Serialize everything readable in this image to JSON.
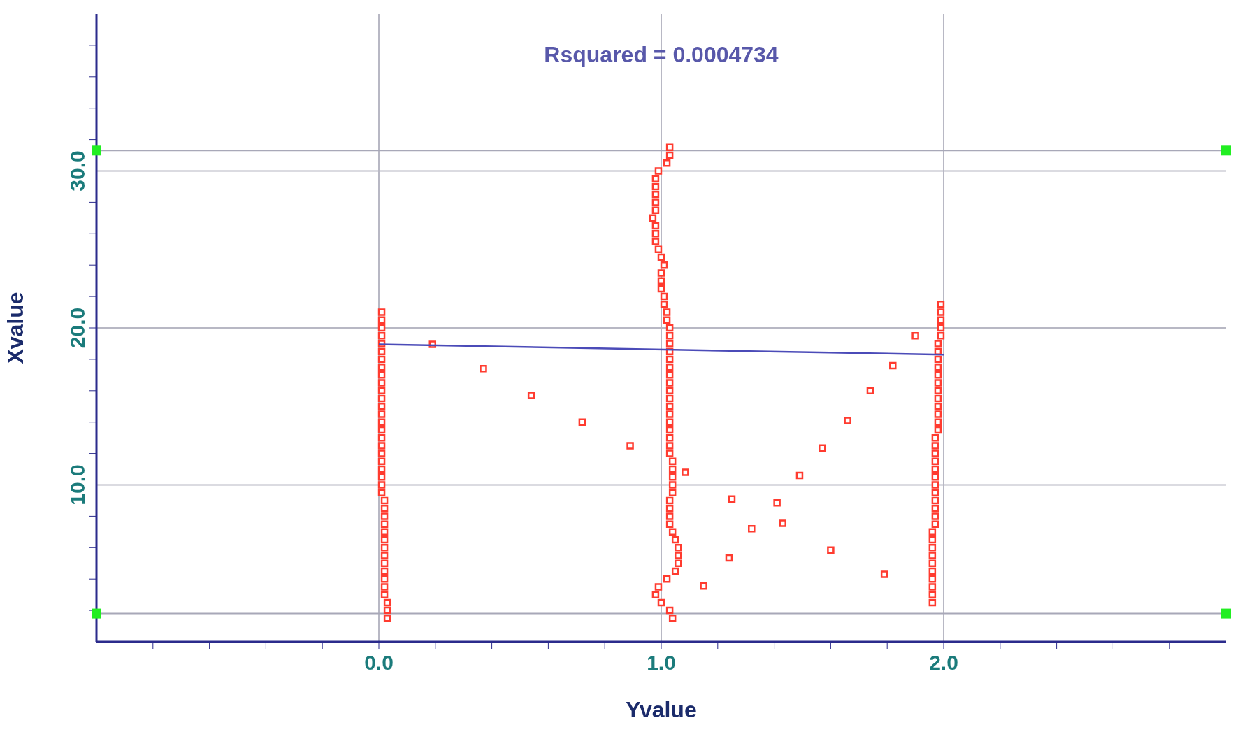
{
  "chart_data": {
    "type": "scatter",
    "xlabel": "Yvalue",
    "ylabel": "Xvalue",
    "annotations": [
      "Rsquared = 0.0004734"
    ],
    "xlim": [
      -1,
      3
    ],
    "xticks": [
      {
        "value": -0.8,
        "label": null
      },
      {
        "value": -0.6,
        "label": null
      },
      {
        "value": -0.4,
        "label": null
      },
      {
        "value": -0.2,
        "label": null
      },
      {
        "value": 0,
        "label": "0.0"
      },
      {
        "value": 0.2,
        "label": null
      },
      {
        "value": 0.4,
        "label": null
      },
      {
        "value": 0.6,
        "label": null
      },
      {
        "value": 0.8,
        "label": null
      },
      {
        "value": 1,
        "label": "1.0"
      },
      {
        "value": 1.2,
        "label": null
      },
      {
        "value": 1.4,
        "label": null
      },
      {
        "value": 1.6,
        "label": null
      },
      {
        "value": 1.8,
        "label": null
      },
      {
        "value": 2,
        "label": "2.0"
      },
      {
        "value": 2.2,
        "label": null
      },
      {
        "value": 2.4,
        "label": null
      },
      {
        "value": 2.6,
        "label": null
      },
      {
        "value": 2.8,
        "label": null
      }
    ],
    "ylim": [
      0,
      40
    ],
    "yticks": [
      {
        "value": 2,
        "label": null
      },
      {
        "value": 4,
        "label": null
      },
      {
        "value": 6,
        "label": null
      },
      {
        "value": 8,
        "label": null
      },
      {
        "value": 10,
        "label": "10.0"
      },
      {
        "value": 12,
        "label": null
      },
      {
        "value": 14,
        "label": null
      },
      {
        "value": 16,
        "label": null
      },
      {
        "value": 18,
        "label": null
      },
      {
        "value": 20,
        "label": "20.0"
      },
      {
        "value": 22,
        "label": null
      },
      {
        "value": 24,
        "label": null
      },
      {
        "value": 26,
        "label": null
      },
      {
        "value": 28,
        "label": null
      },
      {
        "value": 30,
        "label": "30.0"
      },
      {
        "value": 32,
        "label": null
      },
      {
        "value": 34,
        "label": null
      },
      {
        "value": 36,
        "label": null
      },
      {
        "value": 38,
        "label": null
      }
    ],
    "grid": true,
    "marker": "square",
    "ref_lines": [
      {
        "axis": "y",
        "value": 31.3,
        "color": "#a8a8b8"
      },
      {
        "axis": "y",
        "value": 1.8,
        "color": "#a8a8b8"
      }
    ],
    "series": [
      {
        "type": "scatter",
        "color": "#ff3b2f",
        "x": [
          0.03,
          0.03,
          0.03,
          0.02,
          0.02,
          0.02,
          0.02,
          0.02,
          0.02,
          0.02,
          0.02,
          0.02,
          0.02,
          0.02,
          0.02,
          0.02,
          0.01,
          0.01,
          0.01,
          0.01,
          0.01,
          0.01,
          0.01,
          0.01,
          0.01,
          0.01,
          0.01,
          0.01,
          0.01,
          0.01,
          0.01,
          0.01,
          0.01,
          0.01,
          0.01,
          0.01,
          0.01,
          0.01,
          0.01,
          0.01
        ],
        "values": [
          1.5,
          2,
          2.5,
          3,
          3.5,
          4,
          4.5,
          5,
          5.5,
          6,
          6.5,
          7,
          7.5,
          8,
          8.5,
          9,
          9.5,
          10,
          10.5,
          11,
          11.5,
          12,
          12.5,
          13,
          13.5,
          14,
          14.5,
          15,
          15.5,
          16,
          16.5,
          17,
          17.5,
          18,
          18.5,
          19,
          19.5,
          20,
          20.5,
          21
        ]
      },
      {
        "type": "scatter",
        "color": "#ff3b2f",
        "x": [
          1.04,
          1.03,
          1.0,
          0.98,
          0.99,
          1.02,
          1.05,
          1.06,
          1.06,
          1.06,
          1.05,
          1.04,
          1.03,
          1.03,
          1.03,
          1.03,
          1.04,
          1.04,
          1.04,
          1.04,
          1.04,
          1.03,
          1.03,
          1.03,
          1.03,
          1.03,
          1.03,
          1.03,
          1.03,
          1.03,
          1.03,
          1.03,
          1.03,
          1.03,
          1.03,
          1.03,
          1.03,
          1.03,
          1.02,
          1.02,
          1.01,
          1.01,
          1.0,
          1.0,
          1.0,
          1.01,
          1.0,
          0.99,
          0.98,
          0.98,
          0.98,
          0.97,
          0.98,
          0.98,
          0.98,
          0.98,
          0.98,
          0.99,
          1.02,
          1.03,
          1.03
        ],
        "values": [
          1.5,
          2,
          2.5,
          3,
          3.5,
          4,
          4.5,
          5,
          5.5,
          6,
          6.5,
          7,
          7.5,
          8,
          8.5,
          9,
          9.5,
          10,
          10.5,
          11,
          11.5,
          12,
          12.5,
          13,
          13.5,
          14,
          14.5,
          15,
          15.5,
          16,
          16.5,
          17,
          17.5,
          18,
          18.5,
          19,
          19.5,
          20,
          20.5,
          21,
          21.5,
          22,
          22.5,
          23,
          23.5,
          24,
          24.5,
          25,
          25.5,
          26,
          26.5,
          27,
          27.5,
          28,
          28.5,
          29,
          29.5,
          30,
          30.5,
          31,
          31.5
        ]
      },
      {
        "type": "scatter",
        "color": "#ff3b2f",
        "x": [
          1.96,
          1.96,
          1.96,
          1.96,
          1.96,
          1.96,
          1.96,
          1.96,
          1.96,
          1.96,
          1.97,
          1.97,
          1.97,
          1.97,
          1.97,
          1.97,
          1.97,
          1.97,
          1.97,
          1.97,
          1.97,
          1.97,
          1.98,
          1.98,
          1.98,
          1.98,
          1.98,
          1.98,
          1.98,
          1.98,
          1.98,
          1.98,
          1.98,
          1.98,
          1.99,
          1.99,
          1.99,
          1.99,
          1.99
        ],
        "values": [
          2.5,
          3,
          3.5,
          4,
          4.5,
          5,
          5.5,
          6,
          6.5,
          7,
          7.5,
          8,
          8.5,
          9,
          9.5,
          10,
          10.5,
          11,
          11.5,
          12,
          12.5,
          13,
          13.5,
          14,
          14.5,
          15,
          15.5,
          16,
          16.5,
          17,
          17.5,
          18,
          18.5,
          19,
          19.5,
          20,
          20.5,
          21,
          21.5
        ]
      },
      {
        "type": "scatter",
        "color": "#ff3b2f",
        "x": [
          0.19,
          0.37,
          0.54,
          0.72,
          0.89,
          1.085,
          1.15,
          1.24,
          1.25,
          1.32,
          1.41,
          1.43,
          1.49,
          1.57,
          1.6,
          1.66,
          1.74,
          1.79,
          1.82,
          1.9
        ],
        "values": [
          18.95,
          17.4,
          15.7,
          14.0,
          12.5,
          10.8,
          3.55,
          5.35,
          9.1,
          7.2,
          8.85,
          7.55,
          10.6,
          12.35,
          5.85,
          14.1,
          16.0,
          4.3,
          17.6,
          19.5
        ]
      },
      {
        "type": "line",
        "color": "#4b4bb8",
        "marker": "none",
        "x": [
          0,
          2
        ],
        "values": [
          18.95,
          18.3
        ]
      }
    ]
  }
}
